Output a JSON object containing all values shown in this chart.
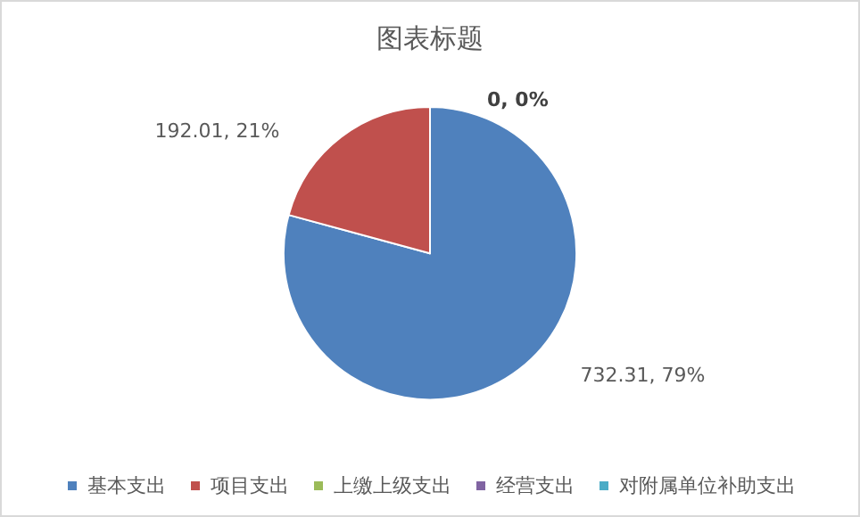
{
  "chart_data": {
    "type": "pie",
    "title": "图表标题",
    "categories": [
      "基本支出",
      "项目支出",
      "上缴上级支出",
      "经营支出",
      "对附属单位补助支出"
    ],
    "values": [
      732.31,
      192.01,
      0,
      0,
      0
    ],
    "colors": [
      "#4f81bd",
      "#c0504d",
      "#9bbb59",
      "#8064a2",
      "#4bacc6"
    ],
    "value_labels": [
      "732.31, 79%",
      "192.01, 21%",
      "0, 0%",
      null,
      null
    ],
    "legend": "bottom"
  }
}
